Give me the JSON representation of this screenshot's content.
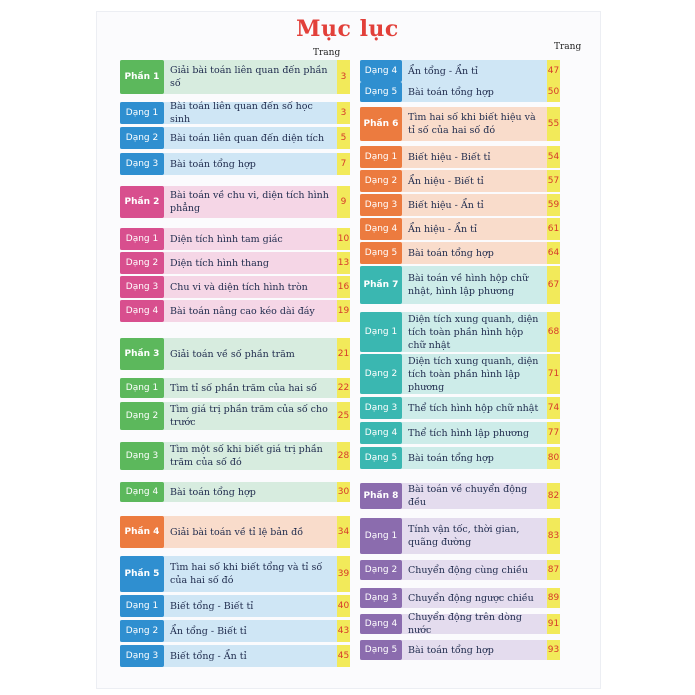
{
  "title": "Mục lục",
  "trang_label": "Trang",
  "colors": {
    "green": {
      "label": "#5cb85c",
      "bg": "#d7ecdf"
    },
    "blue": {
      "label": "#2f8fd0",
      "bg": "#cfe6f5"
    },
    "pink": {
      "label": "#d84f8e",
      "bg": "#f5d6e6"
    },
    "teal": {
      "label": "#3ab7b1",
      "bg": "#cdece9"
    },
    "orange": {
      "label": "#ec7b3f",
      "bg": "#f9dccb"
    },
    "violet": {
      "label": "#8b6cae",
      "bg": "#e4dcee"
    }
  },
  "left": [
    {
      "label": "Phần 1",
      "text": "Giải bài toán liên quan đến phần số",
      "page": "3",
      "color": "green",
      "part": true
    },
    {
      "label": "Dạng 1",
      "text": "Bài toán liên quan đến số học sinh",
      "page": "3",
      "color": "blue"
    },
    {
      "label": "Dạng 2",
      "text": "Bài toán liên quan đến diện tích",
      "page": "5",
      "color": "blue"
    },
    {
      "label": "Dạng 3",
      "text": "Bài toán tổng hợp",
      "page": "7",
      "color": "blue"
    },
    {
      "label": "Phần 2",
      "text": "Bài toán về chu vi, diện tích hình phẳng",
      "page": "9",
      "color": "pink",
      "part": true
    },
    {
      "label": "Dạng 1",
      "text": "Diện tích hình tam giác",
      "page": "10",
      "color": "pink"
    },
    {
      "label": "Dạng 2",
      "text": "Diện tích hình thang",
      "page": "13",
      "color": "pink"
    },
    {
      "label": "Dạng 3",
      "text": "Chu vi và diện tích hình tròn",
      "page": "16",
      "color": "pink"
    },
    {
      "label": "Dạng 4",
      "text": "Bài toán nâng cao kéo dài đáy",
      "page": "19",
      "color": "pink"
    },
    {
      "label": "Phần 3",
      "text": "Giải toán về số phần trăm",
      "page": "21",
      "color": "green",
      "part": true
    },
    {
      "label": "Dạng 1",
      "text": "Tìm tỉ số phần trăm của hai số",
      "page": "22",
      "color": "green"
    },
    {
      "label": "Dạng 2",
      "text": "Tìm giá trị phần trăm của số cho trước",
      "page": "25",
      "color": "green"
    },
    {
      "label": "Dạng 3",
      "text": "Tìm một số khi biết giá trị phần trăm của số đó",
      "page": "28",
      "color": "green"
    },
    {
      "label": "Dạng 4",
      "text": "Bài toán tổng hợp",
      "page": "30",
      "color": "green"
    },
    {
      "label": "Phần 4",
      "text": "Giải bài toán về tỉ lệ bản đồ",
      "page": "34",
      "color": "orange",
      "part": true
    },
    {
      "label": "Phần 5",
      "text": "Tìm hai số khi biết tổng và tỉ số của hai số đó",
      "page": "39",
      "color": "blue",
      "part": true
    },
    {
      "label": "Dạng 1",
      "text": "Biết tổng - Biết tỉ",
      "page": "40",
      "color": "blue"
    },
    {
      "label": "Dạng 2",
      "text": "Ẩn tổng - Biết tỉ",
      "page": "43",
      "color": "blue"
    },
    {
      "label": "Dạng 3",
      "text": "Biết tổng - Ẩn tỉ",
      "page": "45",
      "color": "blue"
    }
  ],
  "right": [
    {
      "label": "Dạng 4",
      "text": "Ẩn tổng - Ẩn tỉ",
      "page": "47",
      "color": "blue"
    },
    {
      "label": "Dạng 5",
      "text": "Bài toán tổng hợp",
      "page": "50",
      "color": "blue"
    },
    {
      "label": "Phần 6",
      "text": "Tìm hai số khi biết hiệu và tỉ số của hai số đó",
      "page": "55",
      "color": "orange",
      "part": true
    },
    {
      "label": "Dạng 1",
      "text": "Biết hiệu - Biết tỉ",
      "page": "54",
      "color": "orange"
    },
    {
      "label": "Dạng 2",
      "text": "Ẩn hiệu - Biết tỉ",
      "page": "57",
      "color": "orange"
    },
    {
      "label": "Dạng 3",
      "text": "Biết hiệu - Ẩn tỉ",
      "page": "59",
      "color": "orange"
    },
    {
      "label": "Dạng 4",
      "text": "Ẩn hiệu - Ẩn tỉ",
      "page": "61",
      "color": "orange"
    },
    {
      "label": "Dạng 5",
      "text": "Bài toán tổng hợp",
      "page": "64",
      "color": "orange"
    },
    {
      "label": "Phần 7",
      "text": "Bài toán về hình hộp chữ nhật, hình lập phương",
      "page": "67",
      "color": "teal",
      "part": true
    },
    {
      "label": "Dạng 1",
      "text": "Diện tích xung quanh, diện tích toàn phần hình hộp chữ nhật",
      "page": "68",
      "color": "teal"
    },
    {
      "label": "Dạng 2",
      "text": "Diện tích xung quanh, diện tích toàn phần hình lập phương",
      "page": "71",
      "color": "teal"
    },
    {
      "label": "Dạng 3",
      "text": "Thể tích hình hộp chữ nhật",
      "page": "74",
      "color": "teal"
    },
    {
      "label": "Dạng 4",
      "text": "Thể tích hình lập phương",
      "page": "77",
      "color": "teal"
    },
    {
      "label": "Dạng 5",
      "text": "Bài toán tổng hợp",
      "page": "80",
      "color": "teal"
    },
    {
      "label": "Phần 8",
      "text": "Bài toán về chuyển động đều",
      "page": "82",
      "color": "violet",
      "part": true
    },
    {
      "label": "Dạng 1",
      "text": "Tính vận tốc, thời gian, quãng đường",
      "page": "83",
      "color": "violet"
    },
    {
      "label": "Dạng 2",
      "text": "Chuyển động cùng chiều",
      "page": "87",
      "color": "violet"
    },
    {
      "label": "Dạng 3",
      "text": "Chuyển động ngược chiều",
      "page": "89",
      "color": "violet"
    },
    {
      "label": "Dạng 4",
      "text": "Chuyển động trên dòng nước",
      "page": "91",
      "color": "violet"
    },
    {
      "label": "Dạng 5",
      "text": "Bài toán tổng hợp",
      "page": "93",
      "color": "violet"
    }
  ]
}
